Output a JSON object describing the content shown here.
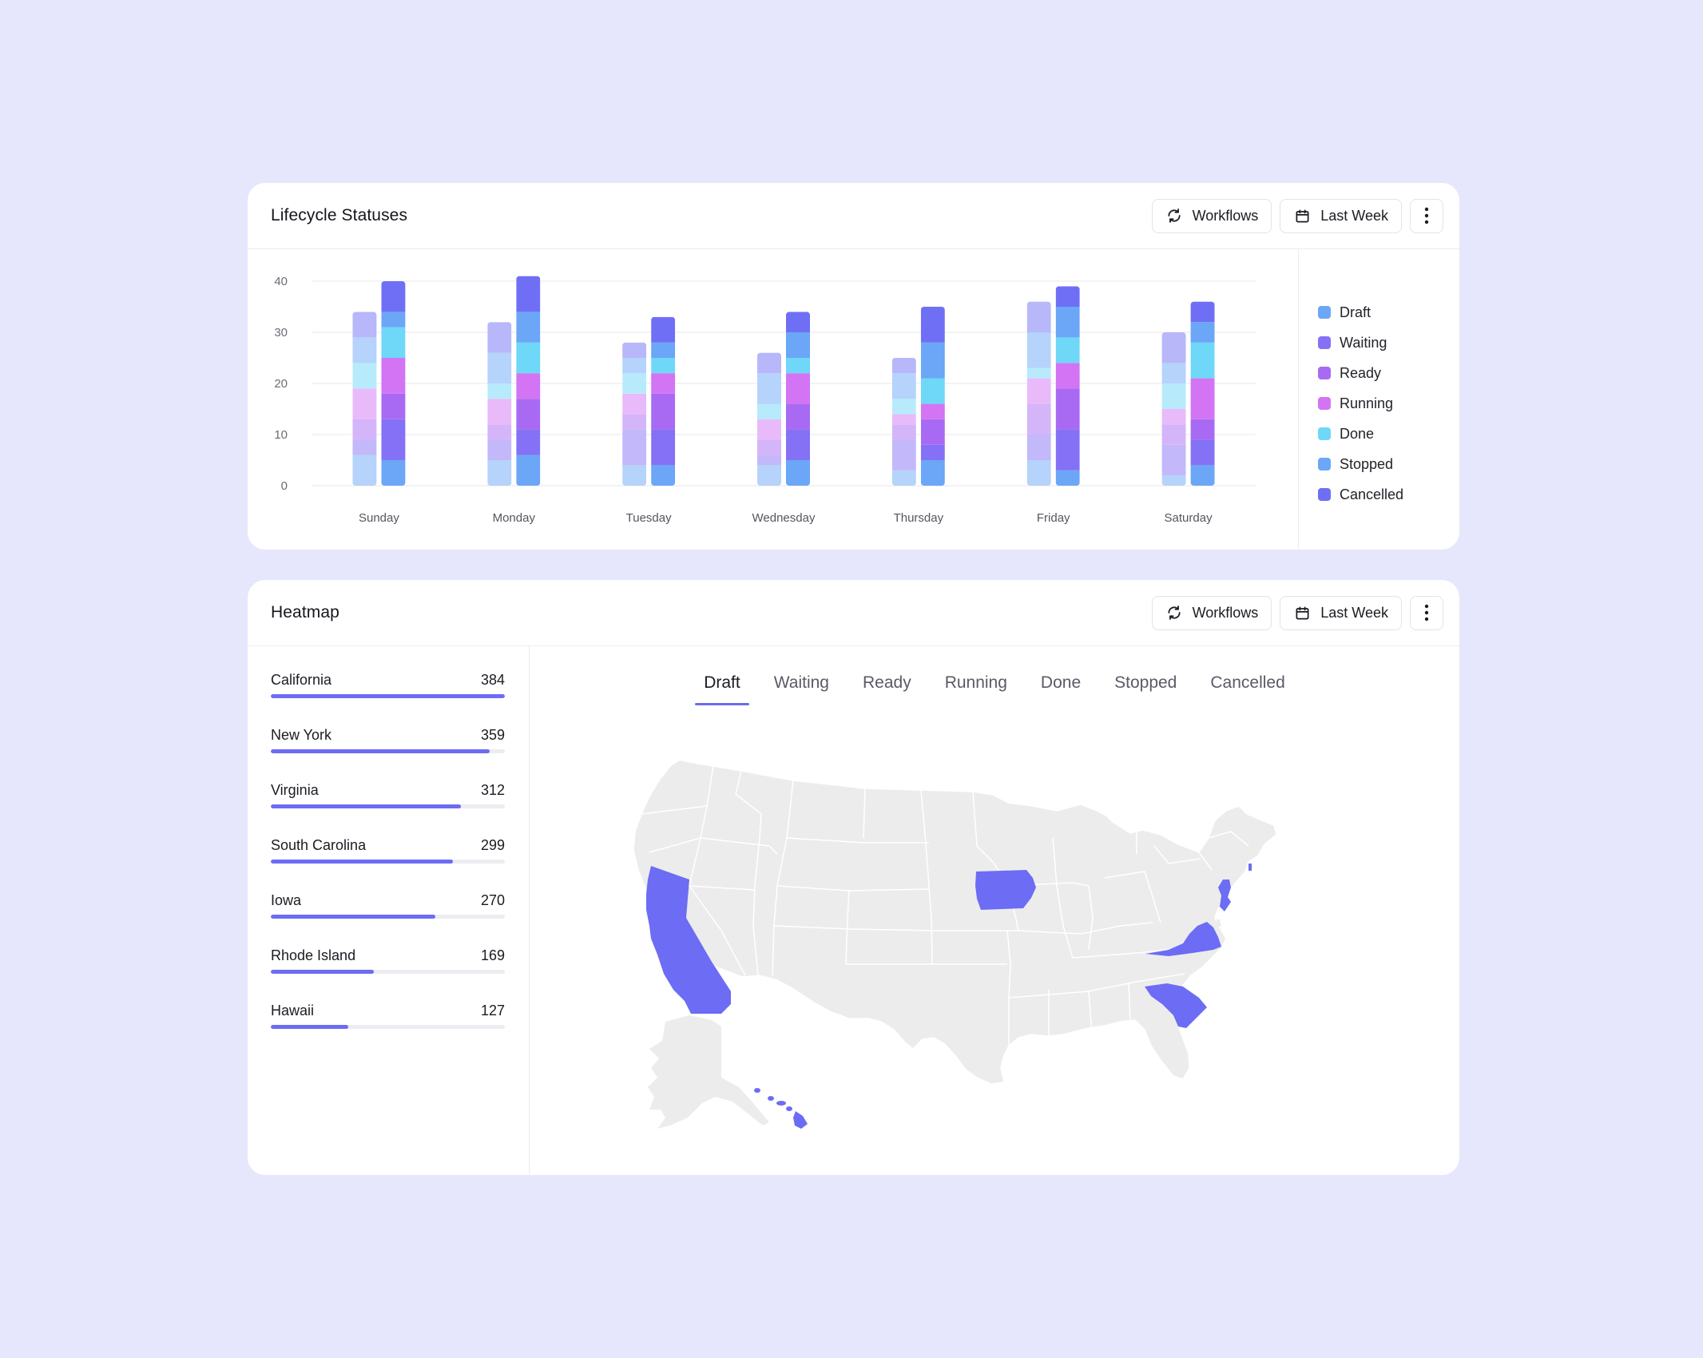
{
  "lifecycle": {
    "title": "Lifecycle Statuses",
    "workflows_label": "Workflows",
    "period_label": "Last Week",
    "workflows_icon": "refresh-icon",
    "period_icon": "calendar-icon",
    "more_icon": "more-vertical-icon"
  },
  "heatmap": {
    "title": "Heatmap",
    "workflows_label": "Workflows",
    "period_label": "Last Week",
    "tabs": [
      "Draft",
      "Waiting",
      "Ready",
      "Running",
      "Done",
      "Stopped",
      "Cancelled"
    ],
    "active_tab": "Draft",
    "states": [
      {
        "name": "California",
        "value": 384
      },
      {
        "name": "New York",
        "value": 359
      },
      {
        "name": "Virginia",
        "value": 312
      },
      {
        "name": "South Carolina",
        "value": 299
      },
      {
        "name": "Iowa",
        "value": 270
      },
      {
        "name": "Rhode Island",
        "value": 169
      },
      {
        "name": "Hawaii",
        "value": 127
      }
    ],
    "highlight_color": "#6c6cf5",
    "base_color": "#ececec",
    "highlighted_states": [
      "California",
      "Iowa",
      "Virginia",
      "South Carolina",
      "New Jersey",
      "Rhode Island",
      "Hawaii"
    ]
  },
  "chart_data": {
    "type": "bar",
    "stacked": true,
    "grouped_pairs": true,
    "categories": [
      "Sunday",
      "Monday",
      "Tuesday",
      "Wednesday",
      "Thursday",
      "Friday",
      "Saturday"
    ],
    "ylim": [
      0,
      40
    ],
    "yticks": [
      0,
      10,
      20,
      30,
      40
    ],
    "legend_position": "right",
    "grid": true,
    "series": [
      {
        "name": "Draft",
        "color": "#6ba6f7",
        "a": [
          6,
          5,
          4,
          4,
          3,
          5,
          2
        ],
        "b": [
          5,
          6,
          4,
          5,
          5,
          3,
          4
        ]
      },
      {
        "name": "Waiting",
        "color": "#8571f5",
        "a": [
          3,
          4,
          7,
          2,
          6,
          5,
          6
        ],
        "b": [
          8,
          5,
          7,
          6,
          3,
          8,
          5
        ]
      },
      {
        "name": "Ready",
        "color": "#a86af2",
        "a": [
          4,
          3,
          3,
          3,
          3,
          6,
          4
        ],
        "b": [
          5,
          6,
          7,
          5,
          5,
          8,
          4
        ]
      },
      {
        "name": "Running",
        "color": "#d274f4",
        "a": [
          6,
          5,
          4,
          4,
          2,
          5,
          3
        ],
        "b": [
          7,
          5,
          4,
          6,
          3,
          5,
          8
        ]
      },
      {
        "name": "Done",
        "color": "#6fd7f7",
        "a": [
          5,
          3,
          4,
          3,
          3,
          2,
          5
        ],
        "b": [
          6,
          6,
          3,
          3,
          5,
          5,
          7
        ]
      },
      {
        "name": "Stopped",
        "color": "#6ba6f7",
        "a": [
          5,
          6,
          3,
          6,
          5,
          7,
          4
        ],
        "b": [
          3,
          6,
          3,
          5,
          7,
          6,
          4
        ]
      },
      {
        "name": "Cancelled",
        "color": "#6f6ff5",
        "a": [
          5,
          6,
          3,
          4,
          3,
          6,
          6
        ],
        "b": [
          6,
          7,
          5,
          4,
          7,
          4,
          4
        ]
      }
    ]
  }
}
